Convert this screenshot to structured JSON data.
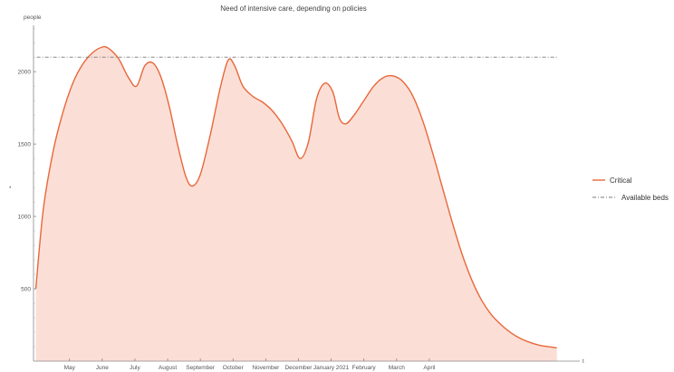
{
  "chart_data": {
    "type": "area",
    "title": "Need of intensive care, depending on policies",
    "ylabel": "people",
    "yaxis_marker": "*",
    "xaxis_end_label": "t",
    "ylim": [
      0,
      2320
    ],
    "yticks": [
      500,
      1000,
      1500,
      2000
    ],
    "ytick_labels": [
      "500",
      "1000",
      "1500",
      "2000"
    ],
    "xlim": [
      3.9,
      20.6
    ],
    "xticks": [
      {
        "x": 5,
        "label": "May"
      },
      {
        "x": 6,
        "label": "June"
      },
      {
        "x": 7,
        "label": "July"
      },
      {
        "x": 8,
        "label": "August"
      },
      {
        "x": 9,
        "label": "September"
      },
      {
        "x": 10,
        "label": "October"
      },
      {
        "x": 11,
        "label": "November"
      },
      {
        "x": 12,
        "label": "December"
      },
      {
        "x": 13,
        "label": "January 2021"
      },
      {
        "x": 14,
        "label": "February"
      },
      {
        "x": 15,
        "label": "March"
      },
      {
        "x": 16,
        "label": "April"
      }
    ],
    "series": [
      {
        "name": "Critical",
        "color": "#e8673a",
        "fill": "#fbdfd6",
        "points": [
          [
            3.97,
            500
          ],
          [
            4.2,
            1050
          ],
          [
            4.5,
            1450
          ],
          [
            4.8,
            1720
          ],
          [
            5.1,
            1920
          ],
          [
            5.4,
            2050
          ],
          [
            5.7,
            2130
          ],
          [
            6.0,
            2170
          ],
          [
            6.2,
            2160
          ],
          [
            6.5,
            2090
          ],
          [
            6.8,
            1960
          ],
          [
            7.05,
            1900
          ],
          [
            7.3,
            2040
          ],
          [
            7.55,
            2060
          ],
          [
            7.8,
            1960
          ],
          [
            8.05,
            1760
          ],
          [
            8.3,
            1500
          ],
          [
            8.55,
            1280
          ],
          [
            8.75,
            1210
          ],
          [
            9.0,
            1290
          ],
          [
            9.3,
            1560
          ],
          [
            9.6,
            1880
          ],
          [
            9.85,
            2080
          ],
          [
            10.05,
            2040
          ],
          [
            10.3,
            1900
          ],
          [
            10.6,
            1830
          ],
          [
            10.9,
            1790
          ],
          [
            11.2,
            1730
          ],
          [
            11.5,
            1640
          ],
          [
            11.8,
            1520
          ],
          [
            12.05,
            1400
          ],
          [
            12.3,
            1510
          ],
          [
            12.55,
            1810
          ],
          [
            12.8,
            1920
          ],
          [
            13.05,
            1860
          ],
          [
            13.25,
            1680
          ],
          [
            13.45,
            1640
          ],
          [
            13.7,
            1700
          ],
          [
            14.0,
            1800
          ],
          [
            14.3,
            1900
          ],
          [
            14.6,
            1960
          ],
          [
            14.9,
            1970
          ],
          [
            15.2,
            1930
          ],
          [
            15.5,
            1830
          ],
          [
            15.8,
            1660
          ],
          [
            16.1,
            1440
          ],
          [
            16.4,
            1200
          ],
          [
            16.7,
            960
          ],
          [
            17.0,
            740
          ],
          [
            17.3,
            560
          ],
          [
            17.6,
            420
          ],
          [
            17.9,
            320
          ],
          [
            18.2,
            250
          ],
          [
            18.5,
            195
          ],
          [
            18.8,
            155
          ],
          [
            19.1,
            128
          ],
          [
            19.4,
            108
          ],
          [
            19.7,
            98
          ],
          [
            19.9,
            92
          ]
        ]
      },
      {
        "name": "Available beds",
        "color": "#777777",
        "style": "dash-dot",
        "value": 2100,
        "x_range": [
          4.0,
          19.9
        ]
      }
    ],
    "legend_position": "right",
    "grid": false
  }
}
